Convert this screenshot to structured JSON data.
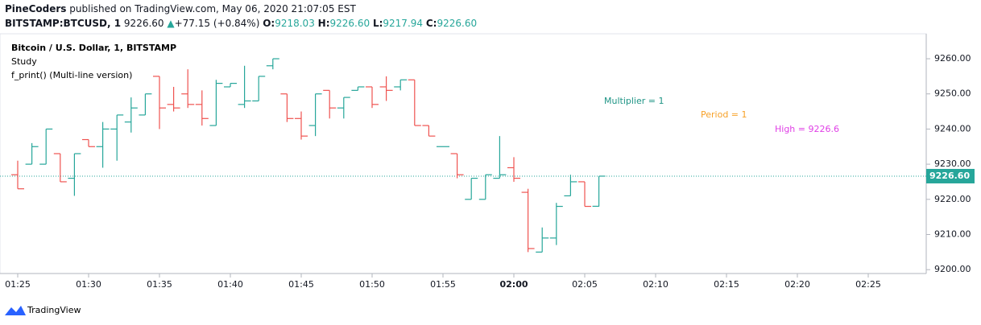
{
  "header": {
    "author": "PineCoders",
    "published": "published on TradingView.com, May 06, 2020 21:07:05 EST",
    "symbol": "BITSTAMP:BTCUSD, 1",
    "last": "9226.60",
    "arrow": "▲",
    "change": "+77.15 (+0.84%)",
    "o_label": "O:",
    "o": "9218.03",
    "h_label": "H:",
    "h": "9226.60",
    "l_label": "L:",
    "l": "9217.94",
    "c_label": "C:",
    "c": "9226.60"
  },
  "legend": {
    "title": "Bitcoin / U.S. Dollar, 1, BITSTAMP",
    "study": "Study",
    "script": "f_print() (Multi-line version)"
  },
  "chart_data": {
    "type": "ohlc",
    "up_color": "#26a69a",
    "down_color": "#ef5350",
    "x": [
      "01:25",
      "01:26",
      "01:27",
      "01:28",
      "01:29",
      "01:30",
      "01:31",
      "01:32",
      "01:33",
      "01:34",
      "01:35",
      "01:36",
      "01:37",
      "01:38",
      "01:39",
      "01:40",
      "01:41",
      "01:42",
      "01:43",
      "01:44",
      "01:45",
      "01:46",
      "01:47",
      "01:48",
      "01:49",
      "01:50",
      "01:51",
      "01:52",
      "01:53",
      "01:54",
      "01:55",
      "01:56",
      "01:57",
      "01:58",
      "01:59",
      "02:00",
      "02:01",
      "02:02",
      "02:03",
      "02:04",
      "02:05",
      "02:06"
    ],
    "open": [
      9227,
      9230,
      9230,
      9233,
      9226,
      9237,
      9235,
      9240,
      9242,
      9244,
      9255,
      9247,
      9250,
      9247,
      9241,
      9252,
      9247,
      9248,
      9258,
      9250,
      9243,
      9241,
      9251,
      9246,
      9251,
      9252,
      9252,
      9252,
      9254,
      9241,
      9235,
      9233,
      9220,
      9220,
      9226,
      9229,
      9222,
      9205,
      9209,
      9221,
      9225,
      9218.03
    ],
    "high": [
      9231,
      9236,
      9240,
      9233,
      9233,
      9237,
      9242,
      9244,
      9249,
      9250,
      9255,
      9252,
      9257,
      9251,
      9254,
      9253,
      9258,
      9255,
      9260,
      9250,
      9245,
      9250,
      9251,
      9249,
      9252,
      9252,
      9255,
      9254,
      9254,
      9241,
      9235,
      9233,
      9226,
      9227,
      9238,
      9232,
      9223,
      9212,
      9219,
      9227,
      9225,
      9226.6
    ],
    "low": [
      9223,
      9230,
      9230,
      9225,
      9221,
      9235,
      9229,
      9231,
      9239,
      9244,
      9240,
      9245,
      9246,
      9241,
      9241,
      9252,
      9246,
      9248,
      9257,
      9242,
      9237,
      9238,
      9243,
      9243,
      9251,
      9246,
      9248,
      9251,
      9241,
      9238,
      9235,
      9226,
      9220,
      9220,
      9226,
      9225,
      9205,
      9205,
      9207,
      9221,
      9218,
      9217.94
    ],
    "close": [
      9223,
      9235,
      9240,
      9225,
      9233,
      9235,
      9240,
      9244,
      9246,
      9250,
      9246,
      9246,
      9247,
      9243,
      9253,
      9253,
      9248,
      9255,
      9260,
      9243,
      9238,
      9250,
      9246,
      9249,
      9252,
      9247,
      9251,
      9254,
      9241,
      9238,
      9235,
      9227,
      9226,
      9227,
      9227,
      9226,
      9206,
      9209,
      9218,
      9225,
      9218,
      9226.6
    ],
    "ylim": [
      9198.9,
      9267.1
    ],
    "yticks": [
      {
        "value": 9200,
        "label": "9200.00"
      },
      {
        "value": 9210,
        "label": "9210.00"
      },
      {
        "value": 9220,
        "label": "9220.00"
      },
      {
        "value": 9230,
        "label": "9230.00"
      },
      {
        "value": 9240,
        "label": "9240.00"
      },
      {
        "value": 9250,
        "label": "9250.00"
      },
      {
        "value": 9260,
        "label": "9260.00"
      }
    ],
    "xticks": [
      "01:25",
      "01:30",
      "01:35",
      "01:40",
      "01:45",
      "01:50",
      "01:55",
      "02:00",
      "02:05",
      "02:10",
      "02:15",
      "02:20",
      "02:25"
    ],
    "last_price": {
      "value": 9226.6,
      "label": "9226.60"
    },
    "annotations": [
      {
        "text": "Multiplier = 1",
        "color": "#1e9485"
      },
      {
        "text": "Period = 1",
        "color": "#f7a128"
      },
      {
        "text": "High = 9226.6",
        "color": "#e040e6"
      }
    ]
  },
  "footer": {
    "brand": "TradingView"
  }
}
